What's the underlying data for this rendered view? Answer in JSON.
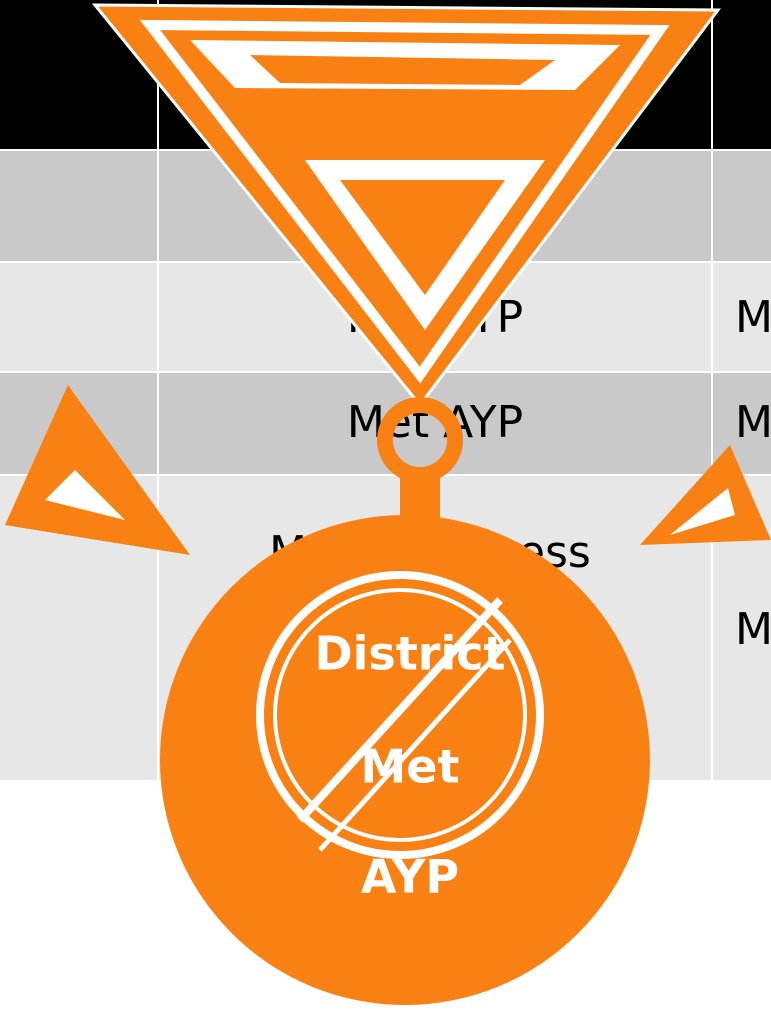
{
  "table": {
    "rows": [
      [
        "",
        "Met AYP",
        "Met AYP"
      ],
      [
        "",
        "Met AYP",
        "Met AYP"
      ],
      [
        "",
        "Made Progress",
        "Met AYP"
      ]
    ]
  },
  "medal": {
    "lines": [
      "District",
      "Met",
      "AYP"
    ]
  }
}
